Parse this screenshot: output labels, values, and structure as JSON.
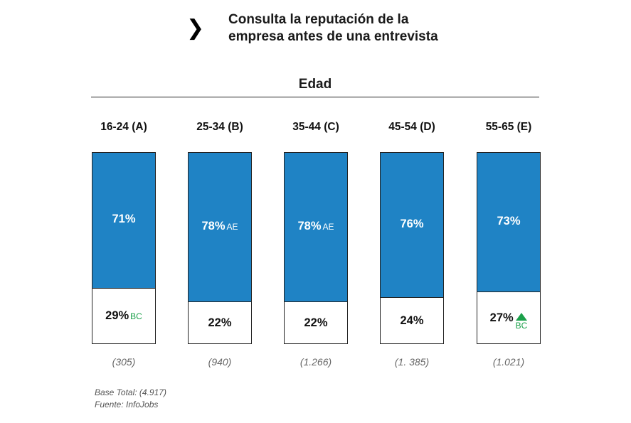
{
  "header": {
    "icon": "chevron-right-icon",
    "title_line1": "Consulta la reputación de la",
    "title_line2": "empresa antes de una entrevista"
  },
  "chart_data": {
    "type": "bar",
    "stacked": true,
    "title": "Edad",
    "categories": [
      "16-24 (A)",
      "25-34 (B)",
      "35-44 (C)",
      "45-54 (D)",
      "55-65 (E)"
    ],
    "series": [
      {
        "values": [
          71,
          78,
          78,
          76,
          73
        ],
        "labels": [
          "71%",
          "78%",
          "78%",
          "76%",
          "73%"
        ],
        "significance": [
          "",
          "AE",
          "AE",
          "",
          ""
        ],
        "color": "#1f83c5"
      },
      {
        "values": [
          29,
          22,
          22,
          24,
          27
        ],
        "labels": [
          "29%",
          "22%",
          "22%",
          "24%",
          "27%"
        ],
        "significance": [
          "BC",
          "",
          "",
          "",
          "BC"
        ],
        "significance_up_arrow": [
          false,
          false,
          false,
          false,
          true
        ],
        "color": "#ffffff"
      }
    ],
    "sample_sizes": [
      "(305)",
      "(940)",
      "(1.266)",
      "(1. 385)",
      "(1.021)"
    ],
    "ylim": [
      0,
      100
    ],
    "significance_color": "#1ba04a"
  },
  "footer": {
    "base": "Base Total: (4.917)",
    "source": "Fuente: InfoJobs"
  }
}
